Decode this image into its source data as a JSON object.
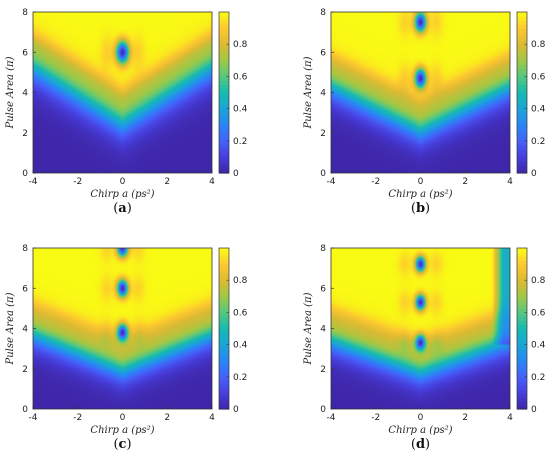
{
  "chart_data": [
    {
      "type": "heatmap",
      "panel_label": "a",
      "xlabel": "Chirp a (ps²)",
      "ylabel": "Pulse Area (π)",
      "xlim": [
        -4,
        4
      ],
      "ylim": [
        0,
        8
      ],
      "x_ticks": [
        -4,
        -2,
        0,
        2,
        4
      ],
      "y_ticks": [
        0,
        2,
        4,
        6,
        8
      ],
      "colorbar": {
        "range": [
          0,
          1
        ],
        "ticks": [
          0,
          0.2,
          0.4,
          0.6,
          0.8
        ],
        "colormap": "parula"
      },
      "features": {
        "base": 2.6,
        "v_slope": 0.7,
        "ramp": 1.6,
        "hole_centers": [
          6.0
        ],
        "hole_sx": 0.28,
        "hole_sy": 0.55
      }
    },
    {
      "type": "heatmap",
      "panel_label": "b",
      "xlabel": "Chirp a (ps²)",
      "ylabel": "Pulse Area (π)",
      "xlim": [
        -4,
        4
      ],
      "ylim": [
        0,
        8
      ],
      "x_ticks": [
        -4,
        -2,
        0,
        2,
        4
      ],
      "y_ticks": [
        0,
        2,
        4,
        6,
        8
      ],
      "colorbar": {
        "range": [
          0,
          1
        ],
        "ticks": [
          0,
          0.2,
          0.4,
          0.6,
          0.8
        ],
        "colormap": "parula"
      },
      "features": {
        "base": 2.2,
        "v_slope": 0.55,
        "ramp": 1.4,
        "hole_centers": [
          4.7,
          7.5
        ],
        "hole_sx": 0.25,
        "hole_sy": 0.48
      }
    },
    {
      "type": "heatmap",
      "panel_label": "c",
      "xlabel": "Chirp a (ps²)",
      "ylabel": "Pulse Area (π)",
      "xlim": [
        -4,
        4
      ],
      "ylim": [
        0,
        8
      ],
      "x_ticks": [
        -4,
        -2,
        0,
        2,
        4
      ],
      "y_ticks": [
        0,
        2,
        4,
        6,
        8
      ],
      "colorbar": {
        "range": [
          0,
          1
        ],
        "ticks": [
          0,
          0.2,
          0.4,
          0.6,
          0.8
        ],
        "colormap": "parula"
      },
      "features": {
        "base": 2.0,
        "v_slope": 0.45,
        "ramp": 1.3,
        "hole_centers": [
          3.8,
          6.0,
          8.0
        ],
        "hole_sx": 0.24,
        "hole_sy": 0.42
      }
    },
    {
      "type": "heatmap",
      "panel_label": "d",
      "xlabel": "Chirp a (ps²)",
      "ylabel": "Pulse Area (π)",
      "xlim": [
        -4,
        4
      ],
      "ylim": [
        0,
        8
      ],
      "x_ticks": [
        -4,
        -2,
        0,
        2,
        4
      ],
      "y_ticks": [
        0,
        2,
        4,
        6,
        8
      ],
      "colorbar": {
        "range": [
          0,
          1
        ],
        "ticks": [
          0,
          0.2,
          0.4,
          0.6,
          0.8
        ],
        "colormap": "parula"
      },
      "features": {
        "base": 1.9,
        "v_slope": 0.4,
        "ramp": 1.3,
        "hole_centers": [
          3.3,
          5.3,
          7.2
        ],
        "hole_sx": 0.22,
        "hole_sy": 0.38,
        "right_band_start": 3.2,
        "right_band_ymin": 3.2
      }
    }
  ]
}
